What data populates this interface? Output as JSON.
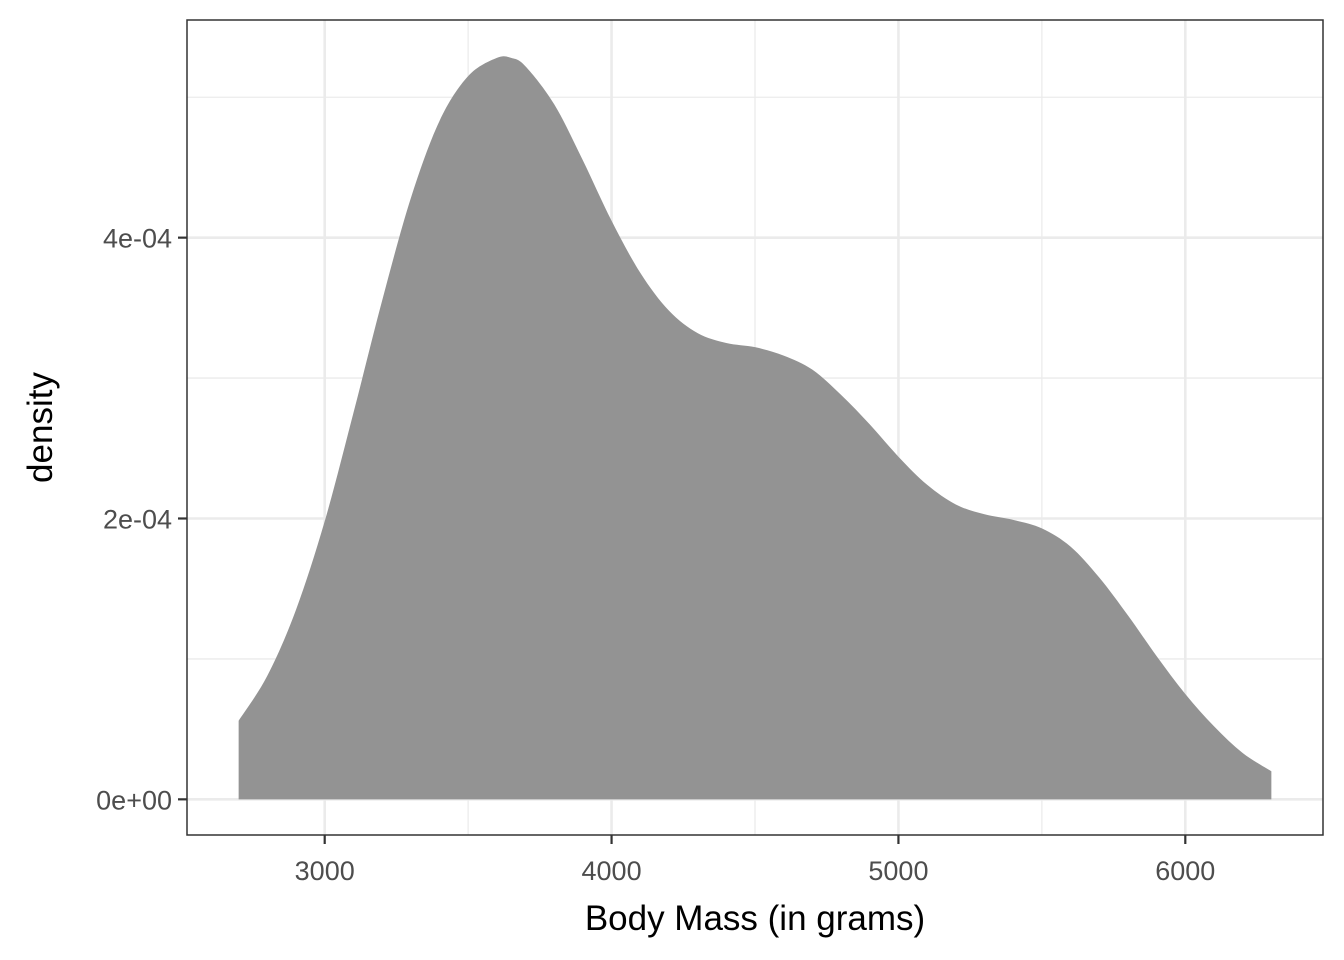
{
  "chart_data": {
    "type": "area",
    "title": "",
    "xlabel": "Body Mass (in grams)",
    "ylabel": "density",
    "xlim": [
      2520,
      6480
    ],
    "ylim": [
      -2.54e-05,
      0.000555
    ],
    "x_ticks": [
      3000,
      4000,
      5000,
      6000
    ],
    "x_tick_labels": [
      "3000",
      "4000",
      "5000",
      "6000"
    ],
    "y_ticks": [
      0,
      0.0002,
      0.0004
    ],
    "y_tick_labels": [
      "0e+00",
      "2e-04",
      "4e-04"
    ],
    "x_minor_ticks": [
      3500,
      4500,
      5500
    ],
    "y_minor_ticks": [
      0.0001,
      0.0003,
      0.0005
    ],
    "grid": true,
    "legend": "none",
    "fill_color": "#939393",
    "series": [
      {
        "x": [
          2700,
          2800,
          2900,
          3000,
          3100,
          3200,
          3300,
          3400,
          3500,
          3600,
          3650,
          3700,
          3800,
          3900,
          4000,
          4100,
          4200,
          4300,
          4400,
          4500,
          4600,
          4700,
          4800,
          4900,
          5000,
          5100,
          5200,
          5300,
          5400,
          5500,
          5600,
          5700,
          5800,
          5900,
          6000,
          6100,
          6200,
          6300
        ],
        "y": [
          5.6e-05,
          8.8e-05,
          0.000135,
          0.000198,
          0.000275,
          0.000355,
          0.000428,
          0.000483,
          0.000515,
          0.000528,
          0.000528,
          0.000522,
          0.000495,
          0.000455,
          0.000412,
          0.000375,
          0.000348,
          0.000332,
          0.000325,
          0.000322,
          0.000316,
          0.000306,
          0.000288,
          0.000267,
          0.000244,
          0.000224,
          0.00021,
          0.000203,
          0.000199,
          0.000193,
          0.00018,
          0.000158,
          0.000131,
          0.000102,
          7.5e-05,
          5.2e-05,
          3.3e-05,
          2e-05
        ]
      }
    ]
  }
}
